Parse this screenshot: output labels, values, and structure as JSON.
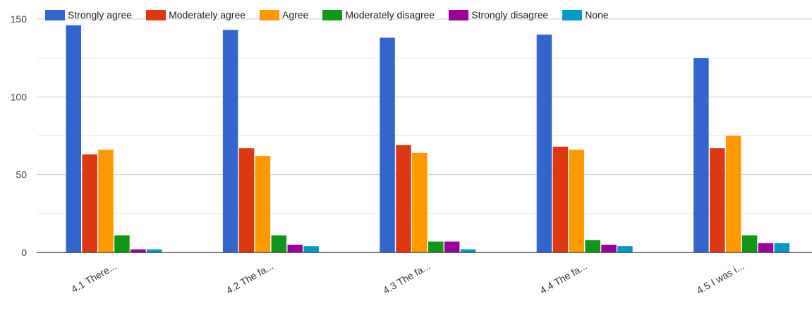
{
  "chart_data": {
    "type": "bar",
    "categories": [
      "4.1 There...",
      "4.2 The fa...",
      "4.3 The fa...",
      "4.4 The fa...",
      "4.5 I was i..."
    ],
    "series": [
      {
        "name": "Strongly agree",
        "color": "#3366cc",
        "values": [
          146,
          143,
          138,
          140,
          125
        ]
      },
      {
        "name": "Moderately agree",
        "color": "#dc3912",
        "values": [
          63,
          67,
          69,
          68,
          67
        ]
      },
      {
        "name": "Agree",
        "color": "#ff9900",
        "values": [
          66,
          62,
          64,
          66,
          75
        ]
      },
      {
        "name": "Moderately disagree",
        "color": "#109618",
        "values": [
          11,
          11,
          7,
          8,
          11
        ]
      },
      {
        "name": "Strongly disagree",
        "color": "#990099",
        "values": [
          2,
          5,
          7,
          5,
          6
        ]
      },
      {
        "name": "None",
        "color": "#0099c6",
        "values": [
          2,
          4,
          2,
          4,
          6
        ]
      }
    ],
    "yticks": [
      "0",
      "50",
      "100",
      "150"
    ],
    "ylim": [
      0,
      150
    ],
    "grid": true,
    "legend_position": "top"
  }
}
